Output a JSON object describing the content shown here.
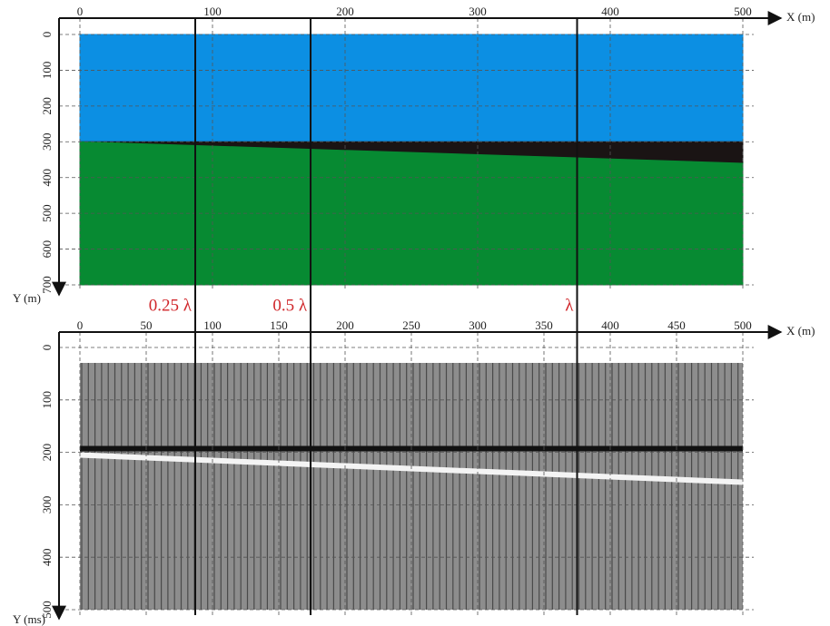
{
  "chart_data": [
    {
      "type": "model",
      "x_label": "X (m)",
      "y_label": "Y (m)",
      "xlim": [
        0,
        500
      ],
      "ylim": [
        0,
        700
      ],
      "xticks": [
        0,
        100,
        200,
        300,
        400,
        500
      ],
      "yticks": [
        0,
        100,
        200,
        300,
        400,
        500,
        600,
        700
      ],
      "grid": true,
      "x": [
        0,
        500
      ],
      "series": [
        {
          "color": "#0c8fe3",
          "values": [
            300,
            300
          ]
        },
        {
          "color": "#1a1414",
          "values": [
            300,
            360
          ]
        },
        {
          "color": "#078a32",
          "values": [
            700,
            700
          ]
        }
      ],
      "annotations": [
        {
          "x": 87,
          "label": "0.25 λ"
        },
        {
          "x": 174,
          "label": "0.5 λ"
        },
        {
          "x": 375,
          "label": "λ"
        }
      ]
    },
    {
      "type": "seismic",
      "x_label": "X (m)",
      "y_label": "Y (ms)",
      "xlim": [
        0,
        500
      ],
      "ylim": [
        0,
        500
      ],
      "xticks": [
        0,
        50,
        100,
        150,
        200,
        250,
        300,
        350,
        400,
        450,
        500
      ],
      "yticks": [
        0,
        100,
        200,
        300,
        400,
        500
      ],
      "grid": true,
      "x": [
        0,
        500
      ],
      "series": [
        {
          "color": "#111111",
          "values": [
            193,
            193
          ]
        },
        {
          "color": "#f4f4f4",
          "values": [
            205,
            257
          ]
        }
      ]
    }
  ]
}
